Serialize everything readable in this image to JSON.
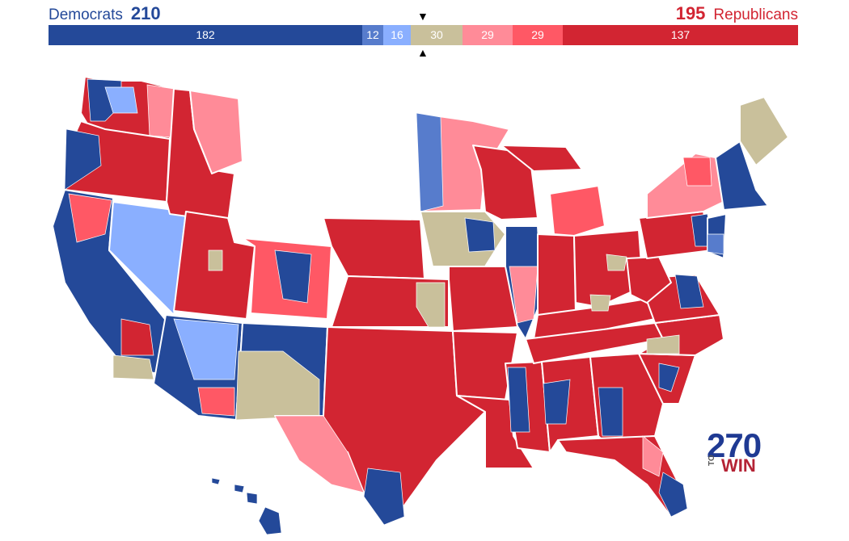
{
  "header": {
    "dem_label": "Democrats",
    "dem_total": "210",
    "rep_total": "195",
    "rep_label": "Republicans"
  },
  "tally": [
    {
      "key": "safe-dem",
      "value": 182,
      "color": "#244999"
    },
    {
      "key": "likely-dem",
      "value": 12,
      "color": "#577ccc"
    },
    {
      "key": "leans-dem",
      "value": 16,
      "color": "#8aafff"
    },
    {
      "key": "tossup",
      "value": 30,
      "color": "#c9c09b"
    },
    {
      "key": "leans-rep",
      "value": 29,
      "color": "#ff8b98"
    },
    {
      "key": "likely-rep",
      "value": 29,
      "color": "#ff5865"
    },
    {
      "key": "safe-rep",
      "value": 137,
      "color": "#d22532"
    }
  ],
  "markers": {
    "top": "▼",
    "bottom": "▲"
  },
  "logo": {
    "number": "270",
    "to": "TO",
    "win": "WIN"
  },
  "colors": {
    "safe_dem": "#244999",
    "likely_dem": "#577ccc",
    "leans_dem": "#8aafff",
    "tossup": "#c9c09b",
    "leans_rep": "#ff8b98",
    "likely_rep": "#ff5865",
    "safe_rep": "#d22532"
  }
}
